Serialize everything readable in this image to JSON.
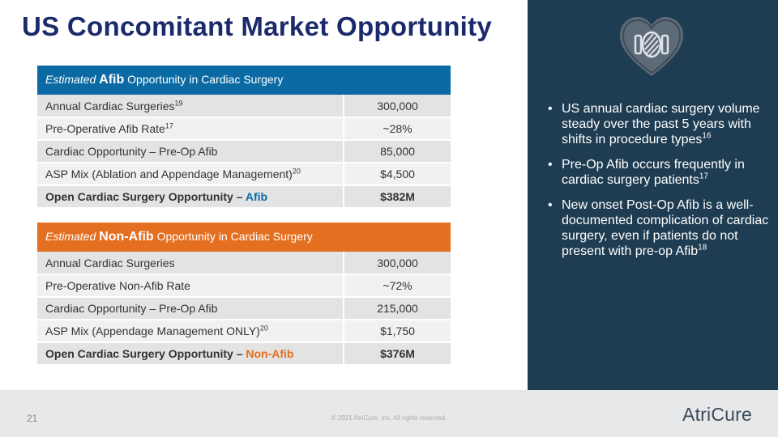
{
  "title": "US Concomitant Market Opportunity",
  "afib_table": {
    "header_prefix": "Estimated",
    "header_bold": "Afib",
    "header_suffix": "Opportunity in Cardiac Surgery",
    "rows": [
      {
        "label": "Annual Cardiac Surgeries",
        "sup": "19",
        "value": "300,000"
      },
      {
        "label": "Pre-Operative Afib Rate",
        "sup": "17",
        "value": "~28%"
      },
      {
        "label": "Cardiac Opportunity – Pre-Op Afib",
        "sup": "",
        "value": "85,000"
      },
      {
        "label": "ASP Mix (Ablation and Appendage Management)",
        "sup": "20",
        "value": "$4,500"
      }
    ],
    "total_label": "Open Cardiac Surgery Opportunity –",
    "total_highlight": "Afib",
    "total_value": "$382M"
  },
  "nonafib_table": {
    "header_prefix": "Estimated",
    "header_bold": "Non-Afib",
    "header_suffix": "Opportunity in Cardiac Surgery",
    "rows": [
      {
        "label": "Annual Cardiac Surgeries",
        "sup": "",
        "value": "300,000"
      },
      {
        "label": "Pre-Operative Non-Afib Rate",
        "sup": "",
        "value": "~72%"
      },
      {
        "label": "Cardiac Opportunity – Pre-Op Afib",
        "sup": "",
        "value": "215,000"
      },
      {
        "label": "ASP Mix (Appendage Management ONLY)",
        "sup": "20",
        "value": "$1,750"
      }
    ],
    "total_label": "Open Cardiac Surgery Opportunity –",
    "total_highlight": "Non-Afib",
    "total_value": "$376M"
  },
  "bullets": [
    {
      "text": "US annual cardiac surgery volume steady over the past 5 years with shifts in procedure types",
      "sup": "16"
    },
    {
      "text": "Pre-Op Afib occurs frequently in cardiac surgery patients",
      "sup": "17"
    },
    {
      "text": "New onset Post-Op Afib is a well-documented complication of cardiac surgery, even if patients do not present with pre-op Afib",
      "sup": "18"
    }
  ],
  "icon": "heart-device-icon",
  "footer": {
    "page_number": "21",
    "copyright": "© 2021 AtriCure, Inc. All rights reserved.",
    "logo": "AtriCure"
  },
  "colors": {
    "title": "#1b2a6b",
    "afib_header": "#0b6aa3",
    "nonafib_header": "#e56f20",
    "panel": "#1e3c52"
  }
}
